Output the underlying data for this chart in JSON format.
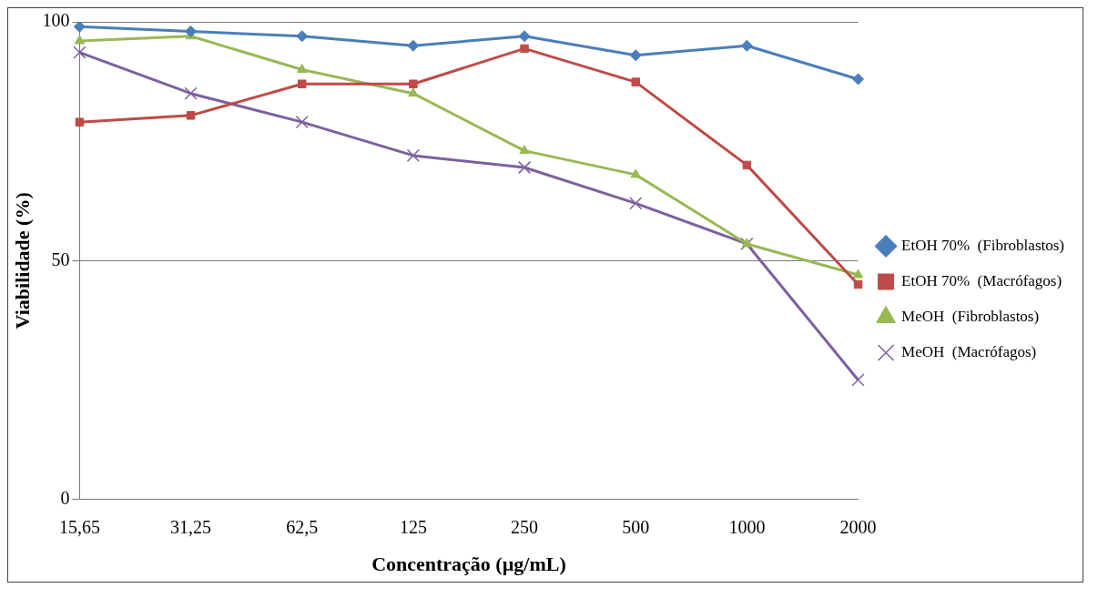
{
  "chart_data": {
    "type": "line",
    "xlabel": "Concentração (µg/mL)",
    "ylabel": "Viabilidade (%)",
    "categories": [
      "15,65",
      "31,25",
      "62,5",
      "125",
      "250",
      "500",
      "1000",
      "2000"
    ],
    "ylim": [
      0,
      100
    ],
    "yticks": [
      0,
      50,
      100
    ],
    "grid": "y",
    "legend": "right",
    "line_style": "solid",
    "series": [
      {
        "name": "EtOH 70%  (Fibroblastos)",
        "color": "#4a7ebb",
        "marker": "diamond",
        "values": [
          99,
          98,
          97,
          95,
          97,
          93,
          95,
          88
        ]
      },
      {
        "name": "EtOH 70%  (Macrófagos)",
        "color": "#be4b48",
        "marker": "square",
        "values": [
          79,
          80.4,
          87,
          87,
          94.4,
          87.4,
          70,
          45
        ]
      },
      {
        "name": "MeOH  (Fibroblastos)",
        "color": "#98b954",
        "marker": "triangle",
        "values": [
          96,
          97,
          90,
          85,
          73,
          68,
          53.5,
          47
        ]
      },
      {
        "name": "MeOH  (Macrófagos)",
        "color": "#7d60a0",
        "marker": "cross",
        "values": [
          93.6,
          85,
          79,
          72,
          69.5,
          62,
          53.5,
          25
        ]
      }
    ]
  }
}
